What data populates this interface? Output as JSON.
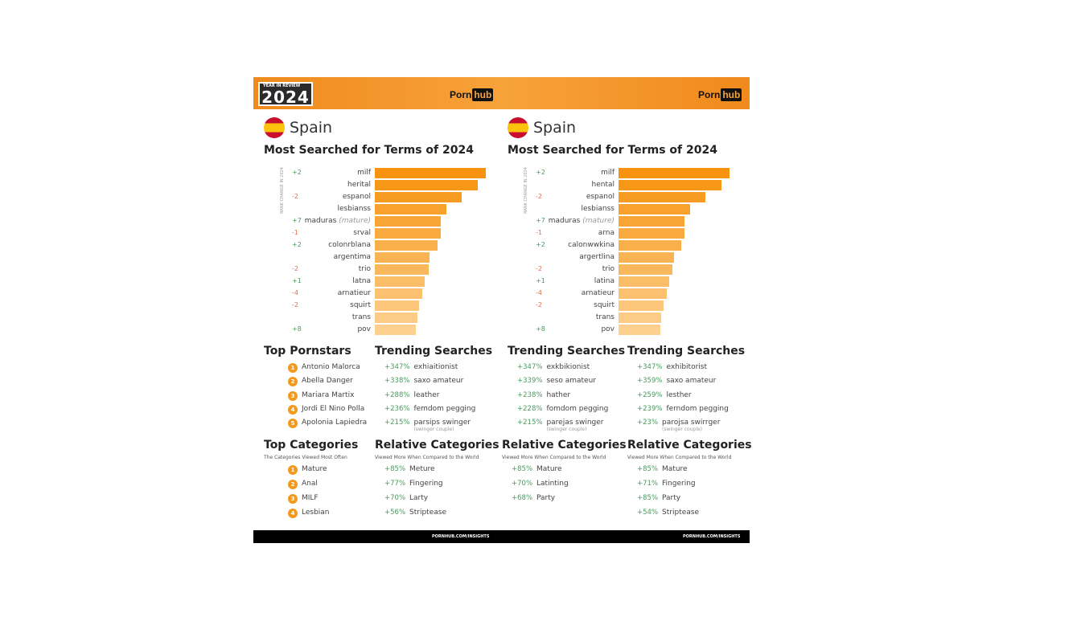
{
  "header": {
    "badge": "2024",
    "badge_small": "YEAR IN REVIEW",
    "logo_left": [
      "Porn",
      "hub"
    ],
    "logo_right": [
      "Porn",
      "hub"
    ]
  },
  "colors": {
    "accent": "#f39a1e",
    "bar_top": "#f7930f",
    "bar_bottom": "#fdd08f",
    "positive": "#4a9a5e",
    "negative": "#e07050",
    "footer": "#000000"
  },
  "footer": {
    "left": "PORNHUB.COM/INSIGHTS",
    "right": "PORNHUB.COM/INSIGHTS"
  },
  "panels": [
    {
      "country": "Spain",
      "title": "Most Searched for Terms of 2024",
      "rank_label": "RANK CHANGE IN 2024",
      "chart_data": {
        "type": "bar",
        "orientation": "horizontal",
        "categories": [
          "milf",
          "herital",
          "espanol",
          "lesbianss",
          "maduras",
          "srval",
          "colonrblana",
          "argentima",
          "trio",
          "latna",
          "arnatieur",
          "squirt",
          "trans",
          "pov"
        ],
        "category_notes": [
          "",
          "",
          "",
          "",
          "(mature)",
          "",
          "",
          "",
          "",
          "",
          "",
          "",
          "",
          ""
        ],
        "rank_change": [
          "+2",
          "",
          "-2",
          "",
          "+7",
          "-1",
          "+2",
          "",
          "-2",
          "+1",
          "-4",
          "-2",
          "",
          "+8"
        ],
        "values": [
          137,
          127,
          107,
          88,
          81,
          81,
          77,
          68,
          67,
          62,
          59,
          55,
          53,
          51
        ]
      },
      "left_section": {
        "title": "Top Pornstars",
        "items": [
          {
            "rank": "1",
            "name": "Antonio Malorca"
          },
          {
            "rank": "2",
            "name": "Abella Danger"
          },
          {
            "rank": "3",
            "name": "Mariara Martix"
          },
          {
            "rank": "4",
            "name": "Jordi El Nino Polla"
          },
          {
            "rank": "5",
            "name": "Apolonia Lapiedra"
          }
        ]
      },
      "right_section": {
        "title": "Trending Searches",
        "items": [
          {
            "pct": "+347%",
            "name": "exhiaitionist"
          },
          {
            "pct": "+338%",
            "name": "saxo amateur"
          },
          {
            "pct": "+288%",
            "name": "leather"
          },
          {
            "pct": "+236%",
            "name": "femdom pegging"
          },
          {
            "pct": "+215%",
            "name": "parsips swinger",
            "note": "(swinger couple)"
          }
        ]
      },
      "left_section2": {
        "title": "Top Categories",
        "subtitle": "The Categories Viewed Most Often",
        "items": [
          {
            "rank": "1",
            "name": "Mature"
          },
          {
            "rank": "2",
            "name": "Anal"
          },
          {
            "rank": "3",
            "name": "MILF"
          },
          {
            "rank": "4",
            "name": "Lesbian"
          }
        ]
      },
      "right_section2": {
        "title": "Relative Categories",
        "subtitle": "Viewed More When Compared to the World",
        "items": [
          {
            "pct": "+85%",
            "name": "Meture"
          },
          {
            "pct": "+77%",
            "name": "Fingering"
          },
          {
            "pct": "+70%",
            "name": "Larty"
          },
          {
            "pct": "+56%",
            "name": "Striptease"
          }
        ]
      }
    },
    {
      "country": "Spain",
      "title": "Most Searched for Terms of 2024",
      "rank_label": "RANK CHANGE IN 2024",
      "chart_data": {
        "type": "bar",
        "orientation": "horizontal",
        "categories": [
          "milf",
          "hental",
          "espanol",
          "lesbianss",
          "maduras",
          "arna",
          "calonwwkina",
          "argertlina",
          "trio",
          "latina",
          "arnatieur",
          "squirt",
          "trans",
          "pov"
        ],
        "category_notes": [
          "",
          "",
          "",
          "",
          "(mature)",
          "",
          "",
          "",
          "",
          "",
          "",
          "",
          "",
          ""
        ],
        "rank_change": [
          "+2",
          "",
          "-2",
          "",
          "+7",
          "-1",
          "+2",
          "",
          "-2",
          "+1",
          "-4",
          "-2",
          "",
          "+8"
        ],
        "values": [
          138,
          128,
          108,
          89,
          82,
          82,
          78,
          69,
          67,
          63,
          60,
          56,
          53,
          52
        ]
      },
      "left_section": {
        "title": "Trending Searches",
        "items": [
          {
            "pct": "+347%",
            "name": "exkbikionist"
          },
          {
            "pct": "+339%",
            "name": "seso amateur"
          },
          {
            "pct": "+238%",
            "name": "hather"
          },
          {
            "pct": "+228%",
            "name": "fomdom pegging"
          },
          {
            "pct": "+215%",
            "name": "parejas swinger",
            "note": "(swinger couple)"
          }
        ]
      },
      "right_section": {
        "title": "Trending Searches",
        "items": [
          {
            "pct": "+347%",
            "name": "exhibitorist"
          },
          {
            "pct": "+359%",
            "name": "saxo amateur"
          },
          {
            "pct": "+259%",
            "name": "lesther"
          },
          {
            "pct": "+239%",
            "name": "ferndom pegging"
          },
          {
            "pct": "+23%",
            "name": "parojsa swirrger",
            "note": "(swinger couple)"
          }
        ]
      },
      "left_section2": {
        "title": "Relative Categories",
        "subtitle": "Viewed More When Compared to the World",
        "items": [
          {
            "pct": "+85%",
            "name": "Mature"
          },
          {
            "pct": "+70%",
            "name": "Latinting"
          },
          {
            "pct": "+68%",
            "name": "Party"
          }
        ]
      },
      "right_section2": {
        "title": "Relative Categories",
        "subtitle": "Viewed More When Compared to the World",
        "items": [
          {
            "pct": "+85%",
            "name": "Mature"
          },
          {
            "pct": "+71%",
            "name": "Fingering"
          },
          {
            "pct": "+85%",
            "name": "Party"
          },
          {
            "pct": "+54%",
            "name": "Striptease"
          }
        ]
      }
    }
  ]
}
